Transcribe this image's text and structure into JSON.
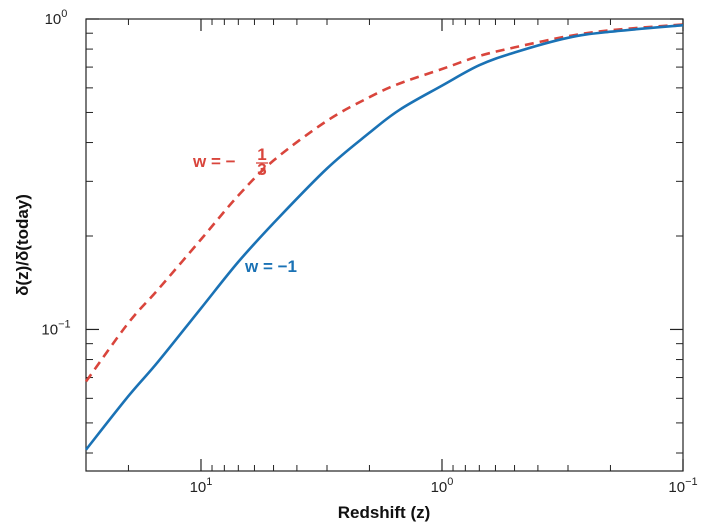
{
  "chart_data": {
    "type": "line",
    "xlabel": "Redshift (z)",
    "ylabel": "δ(z)/δ(today)",
    "x_scale": "log",
    "x_reversed": true,
    "y_scale": "log",
    "xlim": [
      30,
      0.1
    ],
    "ylim": [
      0.035,
      1.0
    ],
    "grid": false,
    "x_ticks": [
      {
        "value": 10,
        "base": "10",
        "exp": "1"
      },
      {
        "value": 1,
        "base": "10",
        "exp": "0"
      },
      {
        "value": 0.1,
        "base": "10",
        "exp": "−1"
      }
    ],
    "y_ticks": [
      {
        "value": 0.1,
        "base": "10",
        "exp": "−1"
      },
      {
        "value": 1,
        "base": "10",
        "exp": "0"
      }
    ],
    "series": [
      {
        "label_prefix": "w = −",
        "label_num": "1",
        "label_den": "3",
        "color": "#d9453c",
        "style": "dashed",
        "x": [
          30,
          20,
          15,
          10,
          7,
          5,
          3,
          2,
          1.5,
          1,
          0.7,
          0.5,
          0.3,
          0.2,
          0.1
        ],
        "y": [
          0.068,
          0.105,
          0.135,
          0.195,
          0.27,
          0.35,
          0.47,
          0.56,
          0.62,
          0.69,
          0.76,
          0.81,
          0.88,
          0.92,
          0.96
        ]
      },
      {
        "label": "w = −1",
        "color": "#1a72b5",
        "style": "solid",
        "x": [
          30,
          20,
          15,
          10,
          7,
          5,
          3,
          2,
          1.5,
          1,
          0.7,
          0.5,
          0.3,
          0.2,
          0.1
        ],
        "y": [
          0.041,
          0.061,
          0.079,
          0.117,
          0.165,
          0.22,
          0.33,
          0.43,
          0.51,
          0.61,
          0.71,
          0.78,
          0.87,
          0.91,
          0.955
        ]
      }
    ]
  }
}
